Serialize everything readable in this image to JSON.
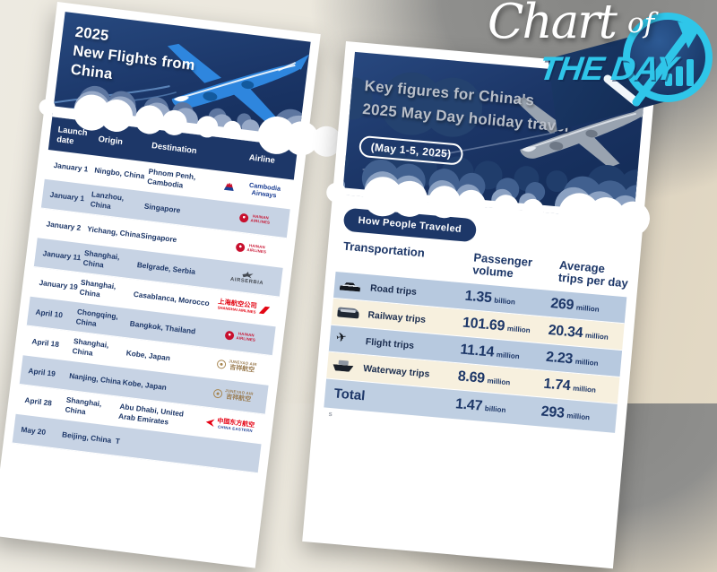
{
  "page": {
    "description": "Chart of the Day infographic: China 2025 May Day holiday travel figures and 2025 new flights from China"
  },
  "logo": {
    "chart": "Chart",
    "of": "of",
    "the_day": "THE DAY",
    "accent_color": "#2fc6e9"
  },
  "colors": {
    "navy": "#1d3768",
    "cyan": "#2fc6e9",
    "row_blue": "#b7c9df",
    "row_cream": "#f7f0de",
    "left_row_blue": "#c7d3e4",
    "title_gray": "#b9bfc9"
  },
  "left_card": {
    "title_lines": [
      "2025",
      "New Flights from",
      "China"
    ],
    "headers": [
      "Launch date",
      "Origin",
      "Destination",
      "Airline"
    ],
    "rows": [
      {
        "date": "January 1",
        "origin": "Ningbo, China",
        "destination": "Phnom Penh, Cambodia",
        "airline": "Cambodia Airways",
        "airline_id": "cambodia",
        "airline_lines": [
          "Cambodia Airways"
        ]
      },
      {
        "date": "January 1",
        "origin": "Lanzhou, China",
        "destination": "Singapore",
        "airline": "Hainan Airlines",
        "airline_id": "hainan",
        "airline_lines": [
          "HAINAN",
          "AIRLINES"
        ]
      },
      {
        "date": "January 2",
        "origin": "Yichang, China",
        "destination": "Singapore",
        "airline": "Hainan Airlines",
        "airline_id": "hainan",
        "airline_lines": [
          "HAINAN",
          "AIRLINES"
        ]
      },
      {
        "date": "January 11",
        "origin": "Shanghai, China",
        "destination": "Belgrade, Serbia",
        "airline": "Air Serbia",
        "airline_id": "airserbia",
        "airline_lines": [
          "AIRSERBIA"
        ]
      },
      {
        "date": "January 19",
        "origin": "Shanghai, China",
        "destination": "Casablanca, Morocco",
        "airline": "Shanghai Airlines",
        "airline_id": "shanghai",
        "airline_lines": [
          "上海航空公司",
          "SHANGHAI AIRLINES"
        ]
      },
      {
        "date": "April 10",
        "origin": "Chongqing, China",
        "destination": "Bangkok, Thailand",
        "airline": "Hainan Airlines",
        "airline_id": "hainan",
        "airline_lines": [
          "HAINAN",
          "AIRLINES"
        ]
      },
      {
        "date": "April 18",
        "origin": "Shanghai, China",
        "destination": "Kobe, Japan",
        "airline": "Juneyao Air",
        "airline_id": "juneyao",
        "airline_lines": [
          "JUNEYAO AIR",
          "吉祥航空"
        ]
      },
      {
        "date": "April 19",
        "origin": "Nanjing, China",
        "destination": "Kobe, Japan",
        "airline": "Juneyao Air",
        "airline_id": "juneyao",
        "airline_lines": [
          "JUNEYAO AIR",
          "吉祥航空"
        ]
      },
      {
        "date": "April 28",
        "origin": "Shanghai, China",
        "destination": "Abu Dhabi, United Arab Emirates",
        "airline": "China Eastern",
        "airline_id": "ceair",
        "airline_lines": [
          "中国东方航空",
          "CHINA EASTERN"
        ]
      },
      {
        "date": "May 20",
        "origin": "Beijing, China",
        "destination": "T",
        "airline": "",
        "airline_id": "none",
        "airline_lines": []
      }
    ]
  },
  "right_card": {
    "title_lines": [
      "Key figures for China's",
      "2025 May Day holiday travel"
    ],
    "subtitle": "(May 1-5, 2025)",
    "section_label": "How People Traveled",
    "headers": [
      "Transportation",
      "Passenger volume",
      "Average trips per day"
    ],
    "rows": [
      {
        "label": "Road trips",
        "icon": "car-icon",
        "volume": "1.35",
        "volume_unit": "billion",
        "avg": "269",
        "avg_unit": "million"
      },
      {
        "label": "Railway trips",
        "icon": "train-icon",
        "volume": "101.69",
        "volume_unit": "million",
        "avg": "20.34",
        "avg_unit": "million"
      },
      {
        "label": "Flight trips",
        "icon": "plane-icon",
        "volume": "11.14",
        "volume_unit": "million",
        "avg": "2.23",
        "avg_unit": "million"
      },
      {
        "label": "Waterway trips",
        "icon": "ship-icon",
        "volume": "8.69",
        "volume_unit": "million",
        "avg": "1.74",
        "avg_unit": "million"
      }
    ],
    "total": {
      "label": "Total",
      "volume": "1.47",
      "volume_unit": "billion",
      "avg": "293",
      "avg_unit": "million"
    },
    "source_hint": "S"
  },
  "chart_data": [
    {
      "type": "table",
      "title": "2025 New Flights from China",
      "columns": [
        "Launch date",
        "Origin",
        "Destination",
        "Airline"
      ],
      "rows": [
        [
          "January 1",
          "Ningbo, China",
          "Phnom Penh, Cambodia",
          "Cambodia Airways"
        ],
        [
          "January 1",
          "Lanzhou, China",
          "Singapore",
          "Hainan Airlines"
        ],
        [
          "January 2",
          "Yichang, China",
          "Singapore",
          "Hainan Airlines"
        ],
        [
          "January 11",
          "Shanghai, China",
          "Belgrade, Serbia",
          "Air Serbia"
        ],
        [
          "January 19",
          "Shanghai, China",
          "Casablanca, Morocco",
          "Shanghai Airlines"
        ],
        [
          "April 10",
          "Chongqing, China",
          "Bangkok, Thailand",
          "Hainan Airlines"
        ],
        [
          "April 18",
          "Shanghai, China",
          "Kobe, Japan",
          "Juneyao Air"
        ],
        [
          "April 19",
          "Nanjing, China",
          "Kobe, Japan",
          "Juneyao Air"
        ],
        [
          "April 28",
          "Shanghai, China",
          "Abu Dhabi, United Arab Emirates",
          "China Eastern"
        ],
        [
          "May 20",
          "Beijing, China",
          "(cut off)",
          "(cut off)"
        ]
      ]
    },
    {
      "type": "table",
      "title": "Key figures for China's 2025 May Day holiday travel (May 1-5, 2025)",
      "section": "How People Traveled",
      "columns": [
        "Transportation",
        "Passenger volume",
        "Average trips per day"
      ],
      "rows": [
        [
          "Road trips",
          "1.35 billion",
          "269 million"
        ],
        [
          "Railway trips",
          "101.69 million",
          "20.34 million"
        ],
        [
          "Flight trips",
          "11.14 million",
          "2.23 million"
        ],
        [
          "Waterway trips",
          "8.69 million",
          "1.74 million"
        ],
        [
          "Total",
          "1.47 billion",
          "293 million"
        ]
      ]
    }
  ]
}
